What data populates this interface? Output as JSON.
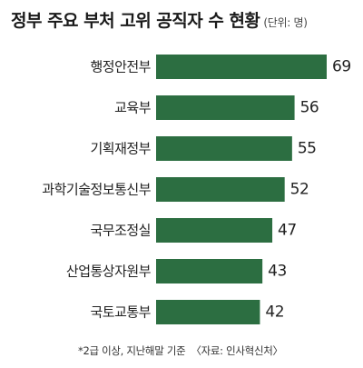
{
  "title": "정부 주요 부처 고위 공직자 수 현황",
  "unit_label": "(단위: 명)",
  "footnote": "*2급 이상, 지난해말 기준",
  "source": "〈자료: 인사혁신처〉",
  "colors": {
    "bar": "#2c6e41",
    "text": "#222222"
  },
  "chart_data": {
    "type": "bar",
    "orientation": "horizontal",
    "categories": [
      "행정안전부",
      "교육부",
      "기획재정부",
      "과학기술정보통신부",
      "국무조정실",
      "산업통상자원부",
      "국토교통부"
    ],
    "values": [
      69,
      56,
      55,
      52,
      47,
      43,
      42
    ],
    "title": "정부 주요 부처 고위 공직자 수 현황",
    "xlabel": "",
    "ylabel": "",
    "xlim": [
      0,
      69
    ],
    "grid": false,
    "legend": "none"
  }
}
